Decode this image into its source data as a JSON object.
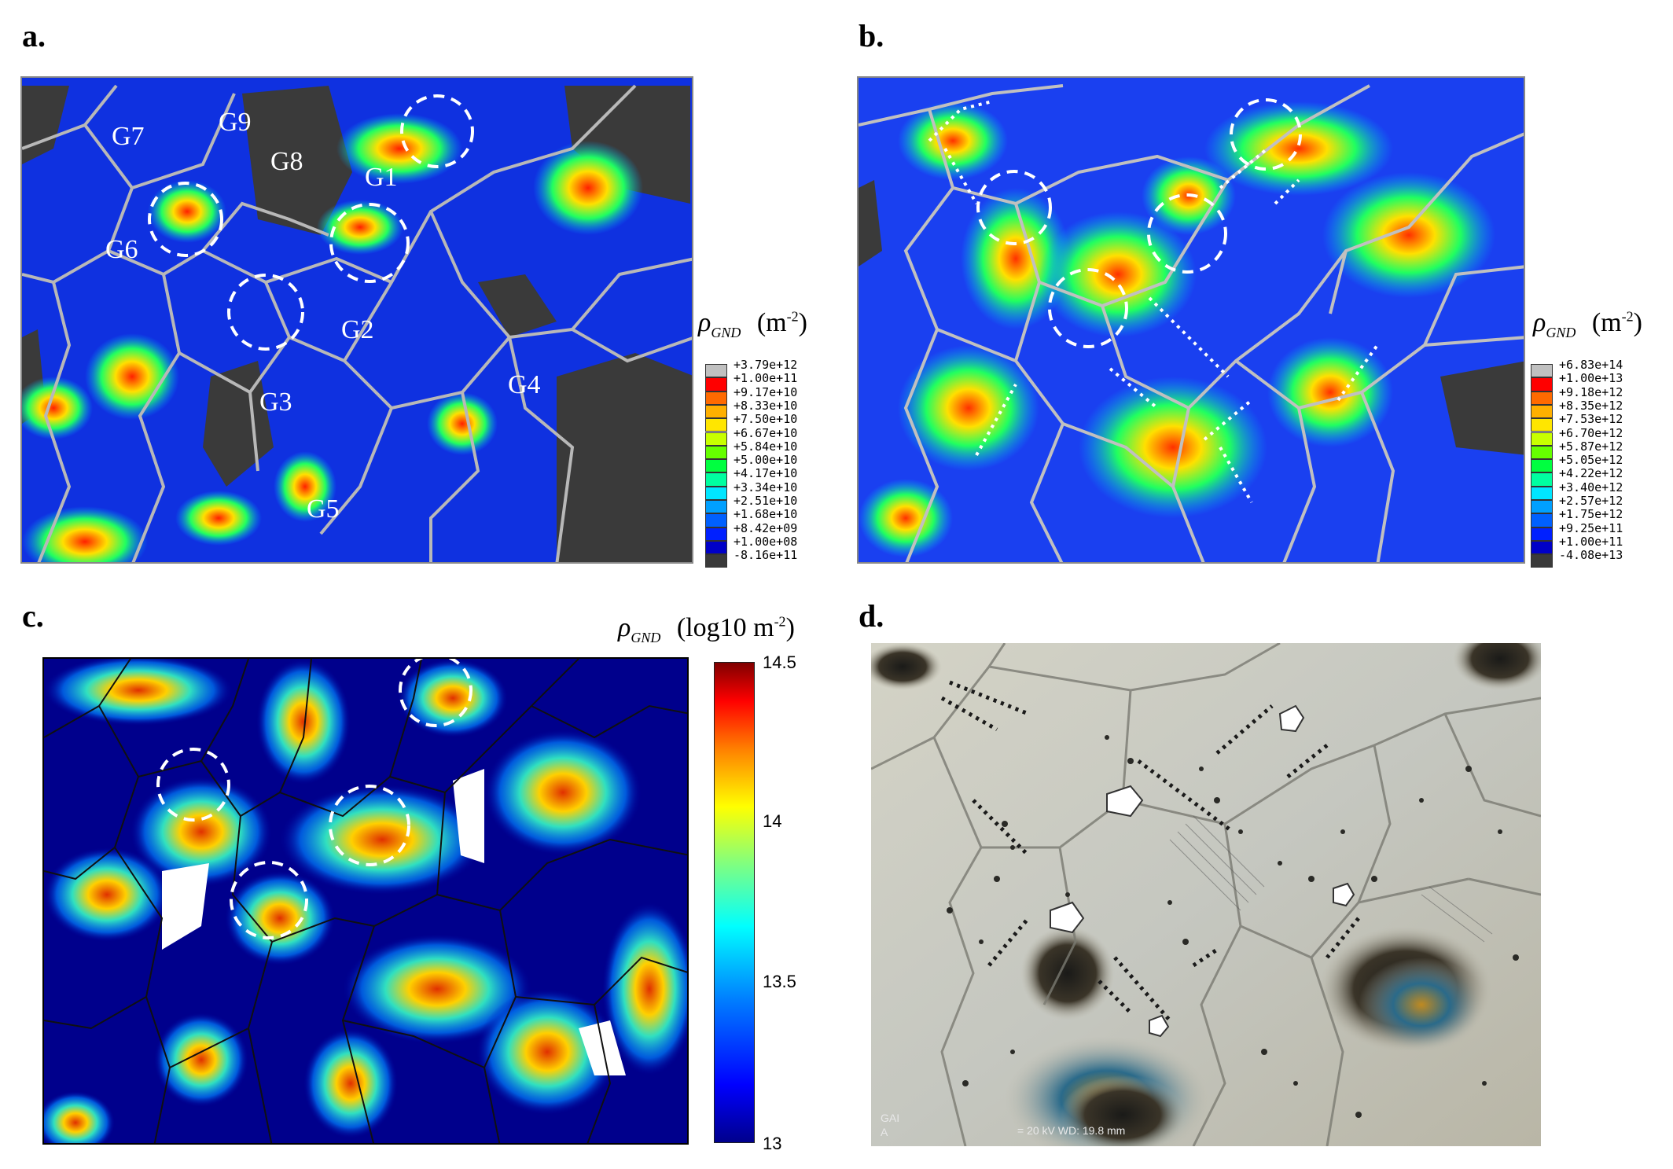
{
  "panels": {
    "a": {
      "label": "a.",
      "legend_title": "(m",
      "legend_sup": "-2",
      "legend_close": ")",
      "legend_values": [
        "+3.79e+12",
        "+1.00e+11",
        "+9.17e+10",
        "+8.33e+10",
        "+7.50e+10",
        "+6.67e+10",
        "+5.84e+10",
        "+5.00e+10",
        "+4.17e+10",
        "+3.34e+10",
        "+2.51e+10",
        "+1.68e+10",
        "+8.42e+09",
        "+1.00e+08",
        "-8.16e+11"
      ],
      "grains": [
        "G7",
        "G9",
        "G8",
        "G1",
        "G6",
        "G2",
        "G3",
        "G4",
        "G5"
      ]
    },
    "b": {
      "label": "b.",
      "legend_title": "(m",
      "legend_sup": "-2",
      "legend_close": ")",
      "legend_values": [
        "+6.83e+14",
        "+1.00e+13",
        "+9.18e+12",
        "+8.35e+12",
        "+7.53e+12",
        "+6.70e+12",
        "+5.87e+12",
        "+5.05e+12",
        "+4.22e+12",
        "+3.40e+12",
        "+2.57e+12",
        "+1.75e+12",
        "+9.25e+11",
        "+1.00e+11",
        "-4.08e+13"
      ]
    },
    "c": {
      "label": "c.",
      "cbar_title": "(log10 m",
      "cbar_sup": "-2",
      "cbar_close": ")",
      "cbar_ticks": [
        "14.5",
        "14",
        "13.5",
        "13"
      ]
    },
    "d": {
      "label": "d.",
      "footer_left": "GAI",
      "footer_left2": "A",
      "footer_mid": "= 20 kV  WD: 19.8 mm"
    }
  },
  "symbol": {
    "rho": "ρ",
    "sub": "GND"
  },
  "legend_colors": [
    "#c0c0c0",
    "#ff0000",
    "#ff6a00",
    "#ffb000",
    "#ffe600",
    "#c8ff00",
    "#66ff00",
    "#00ff40",
    "#00ffa0",
    "#00e6ff",
    "#00a0ff",
    "#0060ff",
    "#0020ff",
    "#0000c8",
    "#3a3a3a"
  ]
}
